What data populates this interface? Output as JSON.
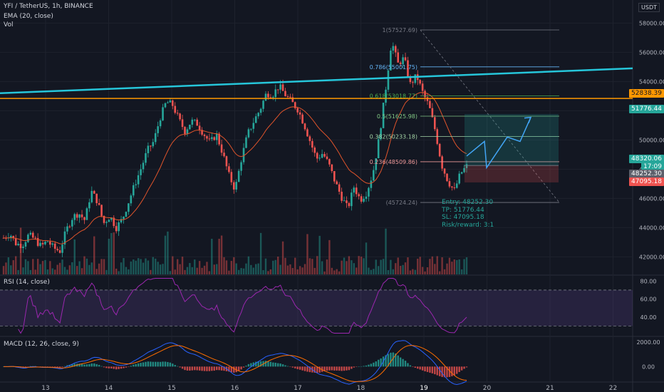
{
  "header": {
    "symbol": "YFI / TetherUS, 1h, BINANCE",
    "ema_label": "EMA (20, close)",
    "vol_label": "Vol",
    "currency": "USDT"
  },
  "colors": {
    "up": "#26a69a",
    "down": "#ef5350",
    "ema": "#e0542b",
    "trend": "#26c6da",
    "resistance": "#ff9800",
    "rsi": "#9c27b0",
    "macd": "#2962ff",
    "signal": "#ff6d00",
    "background": "#131722"
  },
  "price_axis": {
    "ticks": [
      "58000.00",
      "56000.00",
      "54000.00",
      "52000.00",
      "50000.00",
      "48000.00",
      "46000.00",
      "44000.00",
      "42000.00"
    ],
    "ymin": 40800,
    "ymax": 58700
  },
  "time_axis": {
    "labels": [
      "13",
      "14",
      "15",
      "16",
      "17",
      "18",
      "19",
      "20",
      "21",
      "22"
    ]
  },
  "tags": {
    "resistance": "52838.39",
    "tp": "51776.44",
    "last": "48320.06",
    "countdown": "17:09",
    "entry": "48252.30",
    "sl": "47095.18"
  },
  "fib": {
    "levels": [
      {
        "label": "1(57527.69)",
        "price": 57527.69,
        "color": "#787b86"
      },
      {
        "label": "0.786(55001.75)",
        "price": 55001.75,
        "color": "#64b5f6"
      },
      {
        "label": "0.618(53018.77)",
        "price": 53018.77,
        "color": "#4caf50"
      },
      {
        "label": "0.5(51625.98)",
        "price": 51625.98,
        "color": "#81c784"
      },
      {
        "label": "0.382(50233.18)",
        "price": 50233.18,
        "color": "#a5d6a7"
      },
      {
        "label": "0.236(48509.86)",
        "price": 48509.86,
        "color": "#ef9a9a"
      },
      {
        "label": "(45724.24)",
        "price": 45724.24,
        "color": "#787b86"
      }
    ]
  },
  "position": {
    "entry_text": "Entry: 48252.30",
    "tp_text": "TP: 51776.44",
    "sl_text": "SL: 47095.18",
    "rr_text": "Risk/reward: 3:1",
    "entry": 48252.3,
    "tp": 51776.44,
    "sl": 47095.18
  },
  "rsi": {
    "label": "RSI (14, close)",
    "ticks": [
      "80.00",
      "60.00",
      "40.00"
    ],
    "upper": 70,
    "lower": 30,
    "ymin": 20,
    "ymax": 85
  },
  "macd": {
    "label": "MACD (12, 26, close, 9)",
    "ticks": [
      "2000.00",
      "0.00"
    ],
    "ymin": -1200,
    "ymax": 2400
  },
  "chart_data": {
    "type": "candlestick",
    "title": "YFI / TetherUS, 1h, BINANCE",
    "x_days": [
      "13",
      "14",
      "15",
      "16",
      "17",
      "18",
      "19",
      "20",
      "21",
      "22"
    ],
    "resistance_level": 52838.39,
    "trendline": {
      "start": 53200,
      "end": 54900
    },
    "price_path": [
      43300,
      43600,
      42900,
      42800,
      43500,
      43200,
      42700,
      43100,
      42600,
      42400,
      43800,
      44700,
      45000,
      44500,
      46500,
      45800,
      44300,
      44800,
      44000,
      44600,
      45800,
      47000,
      48100,
      49300,
      49900,
      51500,
      52600,
      52400,
      51400,
      50600,
      51300,
      51100,
      50400,
      49800,
      50400,
      49100,
      47600,
      46600,
      48700,
      50400,
      51300,
      52100,
      53200,
      53100,
      53700,
      53100,
      52600,
      52100,
      51100,
      49900,
      48700,
      49100,
      48300,
      47100,
      46100,
      45300,
      46800,
      45900,
      46400,
      47700,
      50100,
      53300,
      56800,
      55200,
      55600,
      53800,
      54400,
      53200,
      52300,
      50600,
      48300,
      47200,
      46500,
      47700,
      48200
    ]
  }
}
